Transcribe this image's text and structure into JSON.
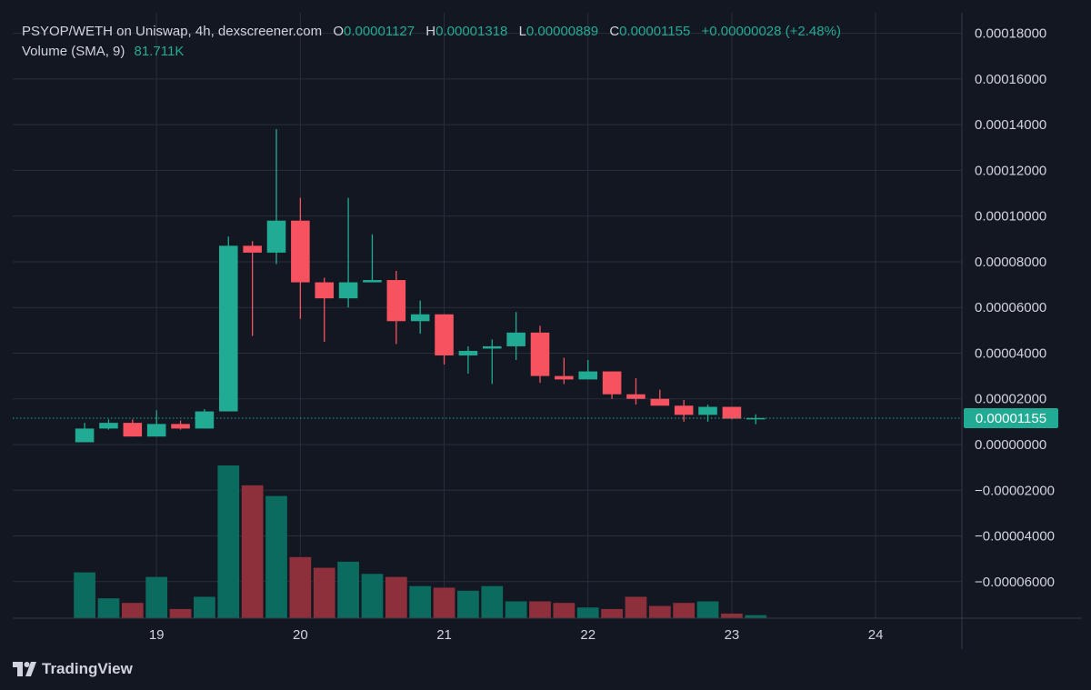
{
  "legend": {
    "symbol": "PSYOP/WETH on Uniswap, 4h, dexscreener.com",
    "o_label": "O",
    "o_value": "0.00001127",
    "h_label": "H",
    "h_value": "0.00001318",
    "l_label": "L",
    "l_value": "0.00000889",
    "c_label": "C",
    "c_value": "0.00001155",
    "change": "+0.00000028 (+2.48%)",
    "volume_label": "Volume (SMA, 9)",
    "volume_value": "81.711K"
  },
  "brand": {
    "name": "TradingView",
    "icon": "tradingview-logo-icon"
  },
  "colors": {
    "background": "#131722",
    "grid": "#2a2e39",
    "up": "#22ab94",
    "down": "#f7525f",
    "vol_up": "#0c6b5f",
    "vol_down": "#8e2f3c",
    "axis_text": "#d1d4dc",
    "last_price_bg": "#22ab94"
  },
  "chart_data": {
    "type": "candlestick",
    "title": "PSYOP/WETH on Uniswap, 4h, dexscreener.com",
    "interval": "4h",
    "last_price": 1.155e-05,
    "last_price_label": "0.00001155",
    "y_axis": {
      "min": -7.6e-05,
      "max": 0.000189,
      "ticks": [
        {
          "value": 0.00018,
          "label": "0.00018000"
        },
        {
          "value": 0.00016,
          "label": "0.00016000"
        },
        {
          "value": 0.00014,
          "label": "0.00014000"
        },
        {
          "value": 0.00012,
          "label": "0.00012000"
        },
        {
          "value": 0.0001,
          "label": "0.00010000"
        },
        {
          "value": 8e-05,
          "label": "0.00008000"
        },
        {
          "value": 6e-05,
          "label": "0.00006000"
        },
        {
          "value": 4e-05,
          "label": "0.00004000"
        },
        {
          "value": 2e-05,
          "label": "0.00002000"
        },
        {
          "value": 0.0,
          "label": "0.00000000"
        },
        {
          "value": -2e-05,
          "label": "−0.00002000"
        },
        {
          "value": -4e-05,
          "label": "−0.00004000"
        },
        {
          "value": -6e-05,
          "label": "−0.00006000"
        }
      ]
    },
    "x_axis": {
      "unit": "day",
      "min": 18.0,
      "max": 24.6,
      "ticks": [
        {
          "value": 19,
          "label": "19"
        },
        {
          "value": 20,
          "label": "20"
        },
        {
          "value": 21,
          "label": "21"
        },
        {
          "value": 22,
          "label": "22"
        },
        {
          "value": 23,
          "label": "23"
        },
        {
          "value": 24,
          "label": "24"
        }
      ]
    },
    "candles": [
      {
        "t": 18.5,
        "o": 1e-06,
        "h": 9.5e-06,
        "l": 1e-06,
        "c": 7e-06
      },
      {
        "t": 18.6667,
        "o": 7e-06,
        "h": 1.1e-05,
        "l": 6.5e-06,
        "c": 9.5e-06
      },
      {
        "t": 18.8333,
        "o": 9.5e-06,
        "h": 1.1e-05,
        "l": 3.5e-06,
        "c": 3.5e-06
      },
      {
        "t": 19.0,
        "o": 3.5e-06,
        "h": 1.5e-05,
        "l": 3.5e-06,
        "c": 9e-06
      },
      {
        "t": 19.1667,
        "o": 9e-06,
        "h": 1.05e-05,
        "l": 6.5e-06,
        "c": 7e-06
      },
      {
        "t": 19.3333,
        "o": 7e-06,
        "h": 1.55e-05,
        "l": 7e-06,
        "c": 1.45e-05
      },
      {
        "t": 19.5,
        "o": 1.45e-05,
        "h": 9.1e-05,
        "l": 1.45e-05,
        "c": 8.7e-05
      },
      {
        "t": 19.6667,
        "o": 8.7e-05,
        "h": 8.9e-05,
        "l": 4.75e-05,
        "c": 8.4e-05
      },
      {
        "t": 19.8333,
        "o": 8.4e-05,
        "h": 0.000138,
        "l": 7.9e-05,
        "c": 9.8e-05
      },
      {
        "t": 20.0,
        "o": 9.8e-05,
        "h": 0.000108,
        "l": 5.5e-05,
        "c": 7.1e-05
      },
      {
        "t": 20.1667,
        "o": 7.1e-05,
        "h": 7.3e-05,
        "l": 4.5e-05,
        "c": 6.4e-05
      },
      {
        "t": 20.3333,
        "o": 6.4e-05,
        "h": 0.000108,
        "l": 6e-05,
        "c": 7.1e-05
      },
      {
        "t": 20.5,
        "o": 7.1e-05,
        "h": 9.2e-05,
        "l": 7.1e-05,
        "c": 7.2e-05
      },
      {
        "t": 20.6667,
        "o": 7.2e-05,
        "h": 7.6e-05,
        "l": 4.4e-05,
        "c": 5.4e-05
      },
      {
        "t": 20.8333,
        "o": 5.4e-05,
        "h": 6.3e-05,
        "l": 4.85e-05,
        "c": 5.7e-05
      },
      {
        "t": 21.0,
        "o": 5.7e-05,
        "h": 5.7e-05,
        "l": 3.5e-05,
        "c": 3.9e-05
      },
      {
        "t": 21.1667,
        "o": 3.9e-05,
        "h": 4.3e-05,
        "l": 3.1e-05,
        "c": 4.1e-05
      },
      {
        "t": 21.3333,
        "o": 4.2e-05,
        "h": 4.6e-05,
        "l": 2.65e-05,
        "c": 4.3e-05
      },
      {
        "t": 21.5,
        "o": 4.3e-05,
        "h": 5.8e-05,
        "l": 3.7e-05,
        "c": 4.9e-05
      },
      {
        "t": 21.6667,
        "o": 4.9e-05,
        "h": 5.2e-05,
        "l": 2.7e-05,
        "c": 3e-05
      },
      {
        "t": 21.8333,
        "o": 3e-05,
        "h": 3.8e-05,
        "l": 2.65e-05,
        "c": 2.85e-05
      },
      {
        "t": 22.0,
        "o": 2.85e-05,
        "h": 3.7e-05,
        "l": 2.85e-05,
        "c": 3.2e-05
      },
      {
        "t": 22.1667,
        "o": 3.2e-05,
        "h": 3.2e-05,
        "l": 2e-05,
        "c": 2.2e-05
      },
      {
        "t": 22.3333,
        "o": 2.2e-05,
        "h": 2.9e-05,
        "l": 1.75e-05,
        "c": 2e-05
      },
      {
        "t": 22.5,
        "o": 2e-05,
        "h": 2.4e-05,
        "l": 1.7e-05,
        "c": 1.7e-05
      },
      {
        "t": 22.6667,
        "o": 1.7e-05,
        "h": 1.95e-05,
        "l": 1e-05,
        "c": 1.3e-05
      },
      {
        "t": 22.8333,
        "o": 1.3e-05,
        "h": 1.75e-05,
        "l": 1e-05,
        "c": 1.65e-05
      },
      {
        "t": 23.0,
        "o": 1.65e-05,
        "h": 1.65e-05,
        "l": 1.1e-05,
        "c": 1.13e-05
      },
      {
        "t": 23.1667,
        "o": 1.13e-05,
        "h": 1.32e-05,
        "l": 8.9e-06,
        "c": 1.16e-05
      }
    ],
    "volume": {
      "name": "Volume (SMA, 9)",
      "sma": "81.711K",
      "values": [
        0.3,
        0.13,
        0.1,
        0.27,
        0.06,
        0.14,
        1.0,
        0.87,
        0.8,
        0.4,
        0.33,
        0.37,
        0.29,
        0.27,
        0.21,
        0.2,
        0.18,
        0.21,
        0.11,
        0.11,
        0.1,
        0.07,
        0.06,
        0.14,
        0.08,
        0.1,
        0.11,
        0.03,
        0.02
      ]
    }
  }
}
